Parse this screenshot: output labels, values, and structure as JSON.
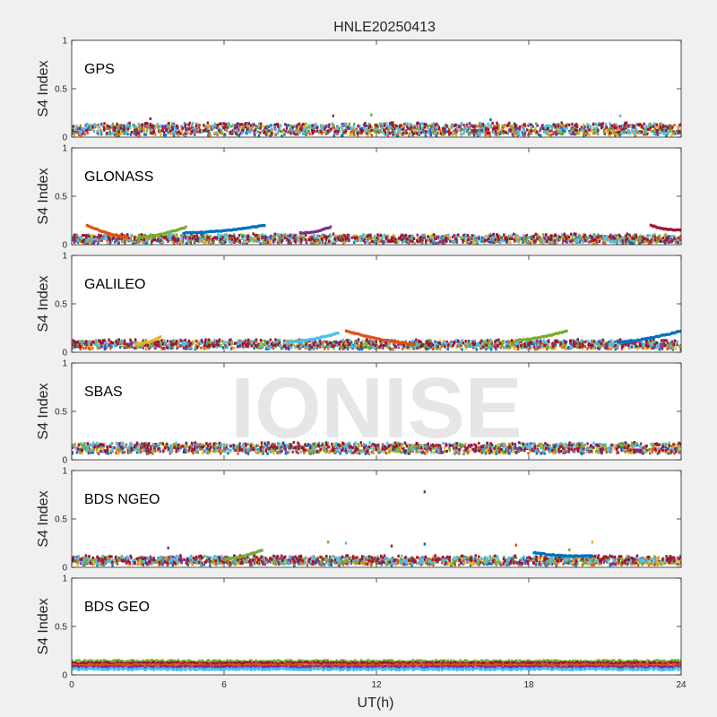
{
  "figure": {
    "title": "HNLE20250413",
    "watermark": "IONISE",
    "xlabel": "UT(h)",
    "ylabel": "S4 Index"
  },
  "colors": {
    "background": "#f0f0f0",
    "axes_bg": "#ffffff",
    "axis_line": "#262626",
    "series": [
      "#0072BD",
      "#D95319",
      "#EDB120",
      "#7E2F8E",
      "#77AC30",
      "#4DBEEE",
      "#A2142F"
    ]
  },
  "chart_data": [
    {
      "type": "scatter",
      "panel": "GPS",
      "label": "GPS",
      "xlim": [
        0,
        24
      ],
      "ylim": [
        0,
        1
      ],
      "xticks": [
        0,
        6,
        12,
        18,
        24
      ],
      "yticks": [
        0,
        0.5,
        1
      ],
      "baseline": 0.08,
      "spread": 0.07,
      "outliers": [
        [
          10.3,
          0.22
        ],
        [
          11.8,
          0.23
        ],
        [
          21.6,
          0.22
        ],
        [
          3.1,
          0.19
        ],
        [
          16.5,
          0.18
        ]
      ]
    },
    {
      "type": "scatter",
      "panel": "GLONASS",
      "label": "GLONASS",
      "xlim": [
        0,
        24
      ],
      "ylim": [
        0,
        1
      ],
      "xticks": [
        0,
        6,
        12,
        18,
        24
      ],
      "yticks": [
        0,
        0.5,
        1
      ],
      "baseline": 0.06,
      "spread": 0.05,
      "arcs": [
        [
          0.6,
          2.2,
          0.2,
          0.07
        ],
        [
          2.6,
          4.5,
          0.07,
          0.18
        ],
        [
          4.4,
          7.6,
          0.12,
          0.2
        ],
        [
          9.0,
          10.2,
          0.12,
          0.18
        ],
        [
          22.8,
          24,
          0.2,
          0.15
        ]
      ],
      "outliers": []
    },
    {
      "type": "scatter",
      "panel": "GALILEO",
      "label": "GALILEO",
      "xlim": [
        0,
        24
      ],
      "ylim": [
        0,
        1
      ],
      "xticks": [
        0,
        6,
        12,
        18,
        24
      ],
      "yticks": [
        0,
        0.5,
        1
      ],
      "baseline": 0.08,
      "spread": 0.05,
      "arcs": [
        [
          2.5,
          3.5,
          0.08,
          0.16
        ],
        [
          8.5,
          10.5,
          0.1,
          0.2
        ],
        [
          10.8,
          13.5,
          0.22,
          0.08
        ],
        [
          17.5,
          19.5,
          0.12,
          0.22
        ],
        [
          21.5,
          24,
          0.1,
          0.22
        ]
      ],
      "outliers": []
    },
    {
      "type": "scatter",
      "panel": "SBAS",
      "label": "SBAS",
      "xlim": [
        0,
        24
      ],
      "ylim": [
        0,
        1
      ],
      "xticks": [
        0,
        6,
        12,
        18,
        24
      ],
      "yticks": [
        0,
        0.5,
        1
      ],
      "baseline": 0.12,
      "spread": 0.06,
      "outliers": []
    },
    {
      "type": "scatter",
      "panel": "BDS NGEO",
      "label": "BDS NGEO",
      "xlim": [
        0,
        24
      ],
      "ylim": [
        0,
        1
      ],
      "xticks": [
        0,
        6,
        12,
        18,
        24
      ],
      "yticks": [
        0,
        0.5,
        1
      ],
      "baseline": 0.07,
      "spread": 0.05,
      "arcs": [
        [
          6.0,
          7.5,
          0.08,
          0.18
        ],
        [
          18.2,
          20.5,
          0.15,
          0.12
        ]
      ],
      "outliers": [
        [
          13.9,
          0.78
        ],
        [
          10.1,
          0.26
        ],
        [
          10.8,
          0.25
        ],
        [
          12.6,
          0.22
        ],
        [
          13.9,
          0.24
        ],
        [
          17.5,
          0.23
        ],
        [
          20.5,
          0.26
        ],
        [
          3.8,
          0.2
        ],
        [
          19.6,
          0.18
        ]
      ]
    },
    {
      "type": "scatter",
      "panel": "BDS GEO",
      "label": "BDS GEO",
      "xlim": [
        0,
        24
      ],
      "ylim": [
        0,
        1
      ],
      "xticks": [
        0,
        6,
        12,
        18,
        24
      ],
      "yticks": [
        0,
        0.5,
        1
      ],
      "baseline": 0.1,
      "spread": 0.04,
      "bands": [
        0.14,
        0.12,
        0.1,
        0.08,
        0.06
      ],
      "outliers": []
    }
  ]
}
